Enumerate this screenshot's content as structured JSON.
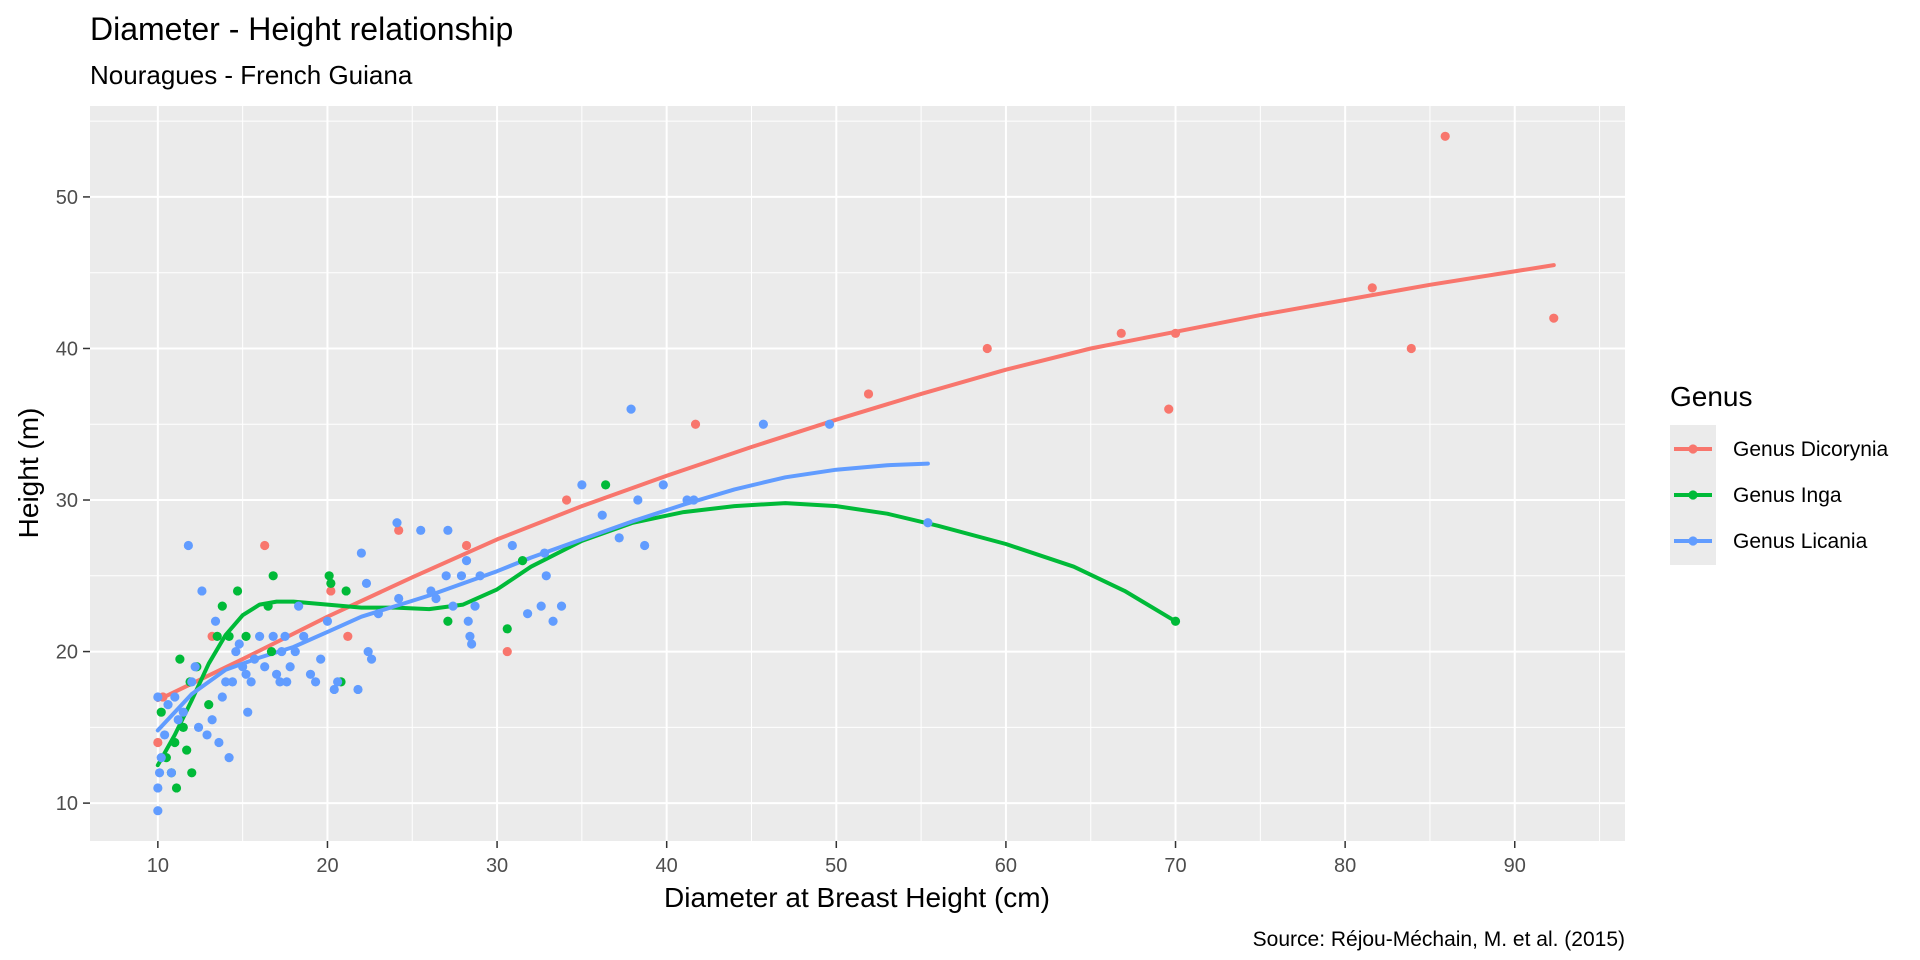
{
  "chart_data": {
    "type": "scatter",
    "title": "Diameter - Height relationship",
    "subtitle": "Nouragues - French Guiana",
    "xlabel": "Diameter at Breast Height (cm)",
    "ylabel": "Height (m)",
    "caption": "Source: Réjou-Méchain, M. et al. (2015)",
    "xlim": [
      6,
      96.5
    ],
    "ylim": [
      7.5,
      56
    ],
    "x_ticks": [
      10,
      20,
      30,
      40,
      50,
      60,
      70,
      80,
      90
    ],
    "y_ticks": [
      10,
      20,
      30,
      40,
      50
    ],
    "grid": true,
    "legend": {
      "title": "Genus",
      "position": "right"
    },
    "series": [
      {
        "name": "Genus Dicorynia",
        "color": "#f8766d",
        "points": [
          [
            10,
            14
          ],
          [
            10.3,
            17
          ],
          [
            13.2,
            21
          ],
          [
            16.3,
            27
          ],
          [
            20.2,
            24
          ],
          [
            21.2,
            21
          ],
          [
            24.2,
            28
          ],
          [
            28.2,
            27
          ],
          [
            30.6,
            20
          ],
          [
            34.1,
            30
          ],
          [
            41.7,
            35
          ],
          [
            51.9,
            37
          ],
          [
            58.9,
            40
          ],
          [
            66.8,
            41
          ],
          [
            69.6,
            36
          ],
          [
            70,
            41
          ],
          [
            81.6,
            44
          ],
          [
            83.9,
            40
          ],
          [
            85.9,
            54
          ],
          [
            92.3,
            42
          ]
        ],
        "smooth": [
          [
            10,
            16.8
          ],
          [
            15,
            19.5
          ],
          [
            20,
            22.3
          ],
          [
            25,
            24.9
          ],
          [
            30,
            27.4
          ],
          [
            35,
            29.6
          ],
          [
            40,
            31.6
          ],
          [
            45,
            33.5
          ],
          [
            50,
            35.3
          ],
          [
            55,
            37
          ],
          [
            60,
            38.6
          ],
          [
            65,
            40
          ],
          [
            70,
            41.1
          ],
          [
            75,
            42.2
          ],
          [
            80,
            43.2
          ],
          [
            85,
            44.2
          ],
          [
            92.3,
            45.5
          ]
        ]
      },
      {
        "name": "Genus Inga",
        "color": "#00ba38",
        "points": [
          [
            10.2,
            16
          ],
          [
            10.5,
            13
          ],
          [
            10.8,
            12
          ],
          [
            11,
            14
          ],
          [
            11.1,
            11
          ],
          [
            11.3,
            19.5
          ],
          [
            11.5,
            15
          ],
          [
            11.7,
            13.5
          ],
          [
            11.9,
            18
          ],
          [
            12,
            12
          ],
          [
            12.3,
            19
          ],
          [
            13,
            16.5
          ],
          [
            13.5,
            21
          ],
          [
            13.8,
            23
          ],
          [
            14.2,
            21
          ],
          [
            14.7,
            24
          ],
          [
            15.2,
            21
          ],
          [
            16.5,
            23
          ],
          [
            16.7,
            20
          ],
          [
            16.8,
            25
          ],
          [
            20.1,
            25
          ],
          [
            20.2,
            24.5
          ],
          [
            20.8,
            18
          ],
          [
            21.1,
            24
          ],
          [
            27.1,
            22
          ],
          [
            30.6,
            21.5
          ],
          [
            31.5,
            26
          ],
          [
            36.4,
            31
          ],
          [
            70,
            22
          ]
        ],
        "smooth": [
          [
            10,
            12.5
          ],
          [
            11,
            14.5
          ],
          [
            12,
            16.8
          ],
          [
            13,
            19.2
          ],
          [
            14,
            21.1
          ],
          [
            15,
            22.4
          ],
          [
            16,
            23.1
          ],
          [
            17,
            23.3
          ],
          [
            18,
            23.3
          ],
          [
            20,
            23.1
          ],
          [
            22,
            22.9
          ],
          [
            24,
            22.9
          ],
          [
            26,
            22.8
          ],
          [
            28,
            23.1
          ],
          [
            30,
            24.1
          ],
          [
            32,
            25.6
          ],
          [
            35,
            27.3
          ],
          [
            38,
            28.5
          ],
          [
            41,
            29.2
          ],
          [
            44,
            29.6
          ],
          [
            47,
            29.8
          ],
          [
            50,
            29.6
          ],
          [
            53,
            29.1
          ],
          [
            56,
            28.3
          ],
          [
            60,
            27.1
          ],
          [
            64,
            25.6
          ],
          [
            67,
            24
          ],
          [
            70,
            22
          ]
        ]
      },
      {
        "name": "Genus Licania",
        "color": "#619cff",
        "points": [
          [
            10,
            9.5
          ],
          [
            10,
            11
          ],
          [
            10.1,
            12
          ],
          [
            10.2,
            13
          ],
          [
            10,
            17
          ],
          [
            10.4,
            14.5
          ],
          [
            10.6,
            16.5
          ],
          [
            10.8,
            12
          ],
          [
            11,
            17
          ],
          [
            11.2,
            15.5
          ],
          [
            11.5,
            16
          ],
          [
            11.8,
            27
          ],
          [
            12,
            18
          ],
          [
            12.2,
            19
          ],
          [
            12.4,
            15
          ],
          [
            12.6,
            24
          ],
          [
            12.9,
            14.5
          ],
          [
            13.2,
            15.5
          ],
          [
            13.4,
            22
          ],
          [
            13.6,
            14
          ],
          [
            13.8,
            17
          ],
          [
            14,
            18
          ],
          [
            14.2,
            13
          ],
          [
            14.4,
            18
          ],
          [
            14.6,
            20
          ],
          [
            14.8,
            20.5
          ],
          [
            15,
            19
          ],
          [
            15.2,
            18.5
          ],
          [
            15.3,
            16
          ],
          [
            15.5,
            18
          ],
          [
            15.7,
            19.5
          ],
          [
            16,
            21
          ],
          [
            16.3,
            19
          ],
          [
            16.8,
            21
          ],
          [
            17,
            18.5
          ],
          [
            17.2,
            18
          ],
          [
            17.3,
            20
          ],
          [
            17.5,
            21
          ],
          [
            17.6,
            18
          ],
          [
            17.8,
            19
          ],
          [
            18.1,
            20
          ],
          [
            18.3,
            23
          ],
          [
            18.6,
            21
          ],
          [
            19,
            18.5
          ],
          [
            19.3,
            18
          ],
          [
            19.6,
            19.5
          ],
          [
            20,
            22
          ],
          [
            20.4,
            17.5
          ],
          [
            20.6,
            18
          ],
          [
            21.8,
            17.5
          ],
          [
            22,
            26.5
          ],
          [
            22.3,
            24.5
          ],
          [
            22.4,
            20
          ],
          [
            22.6,
            19.5
          ],
          [
            23,
            22.5
          ],
          [
            24.1,
            28.5
          ],
          [
            24.2,
            23.5
          ],
          [
            25.5,
            28
          ],
          [
            26.1,
            24
          ],
          [
            26.4,
            23.5
          ],
          [
            27,
            25
          ],
          [
            27.1,
            28
          ],
          [
            27.4,
            23
          ],
          [
            27.9,
            25
          ],
          [
            28.2,
            26
          ],
          [
            28.3,
            22
          ],
          [
            28.4,
            21
          ],
          [
            28.5,
            20.5
          ],
          [
            28.7,
            23
          ],
          [
            29,
            25
          ],
          [
            30.9,
            27
          ],
          [
            31.8,
            22.5
          ],
          [
            32.6,
            23
          ],
          [
            32.8,
            26.5
          ],
          [
            32.9,
            25
          ],
          [
            33.3,
            22
          ],
          [
            33.8,
            23
          ],
          [
            35,
            31
          ],
          [
            36.2,
            29
          ],
          [
            37.2,
            27.5
          ],
          [
            37.9,
            36
          ],
          [
            38.3,
            30
          ],
          [
            38.7,
            27
          ],
          [
            39.8,
            31
          ],
          [
            41.2,
            30
          ],
          [
            41.6,
            30
          ],
          [
            45.7,
            35
          ],
          [
            49.6,
            35
          ],
          [
            55.4,
            28.5
          ]
        ],
        "smooth": [
          [
            10,
            14.8
          ],
          [
            12,
            17.2
          ],
          [
            14,
            18.8
          ],
          [
            16,
            19.6
          ],
          [
            18,
            20.3
          ],
          [
            20,
            21.3
          ],
          [
            22,
            22.3
          ],
          [
            24,
            23
          ],
          [
            26,
            23.7
          ],
          [
            28,
            24.5
          ],
          [
            30,
            25.3
          ],
          [
            32,
            26.2
          ],
          [
            35,
            27.4
          ],
          [
            38,
            28.6
          ],
          [
            41,
            29.7
          ],
          [
            44,
            30.7
          ],
          [
            47,
            31.5
          ],
          [
            50,
            32
          ],
          [
            53,
            32.3
          ],
          [
            55.4,
            32.4
          ]
        ]
      }
    ]
  }
}
